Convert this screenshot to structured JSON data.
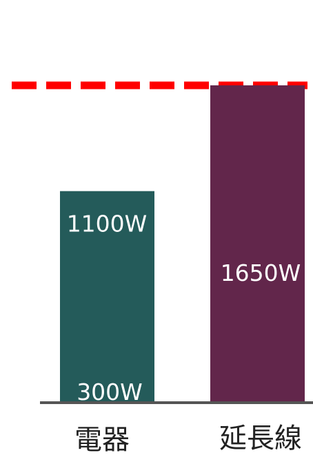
{
  "chart_data": {
    "type": "bar",
    "title": "",
    "xlabel": "",
    "ylabel": "",
    "ylim": [
      0,
      1700
    ],
    "grid": false,
    "legend": "none",
    "categories": [
      "電器",
      "延長線"
    ],
    "values": [
      1100,
      1650
    ],
    "bar_labels": [
      "1100W",
      "1650W"
    ],
    "annotation": {
      "label": "300W",
      "value": 300
    },
    "reference_line": {
      "value": 1700,
      "style": "dashed",
      "color": "#ff0000"
    },
    "colors": {
      "電器": "#245b5a",
      "延長線": "#62264b",
      "axis": "#555555"
    }
  }
}
